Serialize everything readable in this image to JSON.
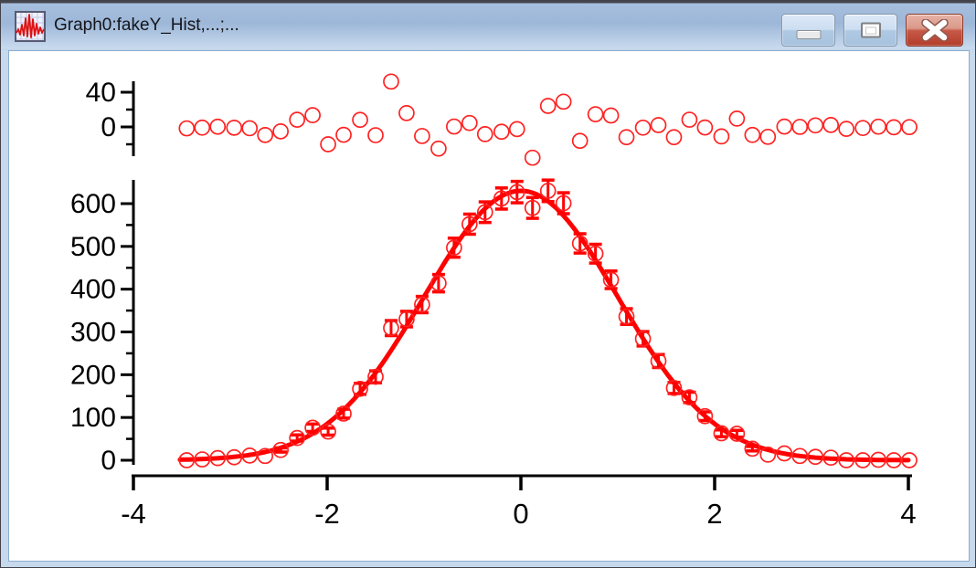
{
  "window": {
    "title": "Graph0:fakeY_Hist,...;...",
    "icon": "graph-waveform-icon",
    "controls": {
      "minimize": "minimize",
      "restore": "restore-down",
      "close": "close"
    }
  },
  "chart_data": {
    "type": "scatter",
    "description": "Origin graph window: histogram counts with Gaussian fit (bottom panel) and fit residuals (top panel)",
    "x_axis": {
      "ticks": [
        -4,
        -2,
        0,
        2,
        4
      ],
      "lim": [
        -4.1,
        4.1
      ]
    },
    "main_panel": {
      "y_ticks": [
        0,
        100,
        200,
        300,
        400,
        500,
        600
      ],
      "y_minor_ticks": [
        50,
        150,
        250,
        350,
        450,
        550
      ],
      "ylim": [
        0,
        660
      ],
      "marker": "open-circle",
      "error_bars": "sqrt(count)"
    },
    "residual_panel": {
      "y_ticks": [
        40,
        0
      ],
      "y_minor_ticks": [
        20,
        -20
      ],
      "ylim": [
        -40,
        56
      ],
      "marker": "open-circle",
      "values": "count - gaussian_fit(x)"
    },
    "fit": {
      "model": "gaussian",
      "amplitude": 630,
      "center": 0,
      "sigma": 1,
      "range": [
        -3.52,
        4.02
      ]
    },
    "x": [
      -3.45,
      -3.29,
      -3.13,
      -2.96,
      -2.8,
      -2.64,
      -2.48,
      -2.31,
      -2.15,
      -1.99,
      -1.83,
      -1.66,
      -1.5,
      -1.34,
      -1.18,
      -1.02,
      -0.85,
      -0.69,
      -0.53,
      -0.37,
      -0.2,
      -0.04,
      0.12,
      0.28,
      0.44,
      0.61,
      0.77,
      0.93,
      1.09,
      1.26,
      1.42,
      1.58,
      1.74,
      1.9,
      2.07,
      2.23,
      2.39,
      2.55,
      2.72,
      2.88,
      3.04,
      3.2,
      3.36,
      3.53,
      3.69,
      3.85,
      4.01
    ],
    "counts": [
      0,
      2,
      5,
      7,
      11,
      10,
      24,
      52,
      76,
      67,
      109,
      167,
      195,
      309,
      330,
      364,
      414,
      497,
      552,
      580,
      612,
      627,
      590,
      630,
      601,
      507,
      483,
      422,
      336,
      284,
      232,
      169,
      147,
      103,
      63,
      62,
      27,
      13,
      16,
      10,
      8,
      6,
      0,
      0,
      1,
      0,
      0
    ],
    "colors": {
      "data": "#ff2222",
      "fit_line": "#ff0000",
      "axis": "#000000"
    },
    "legend": "none",
    "grid": "off"
  }
}
